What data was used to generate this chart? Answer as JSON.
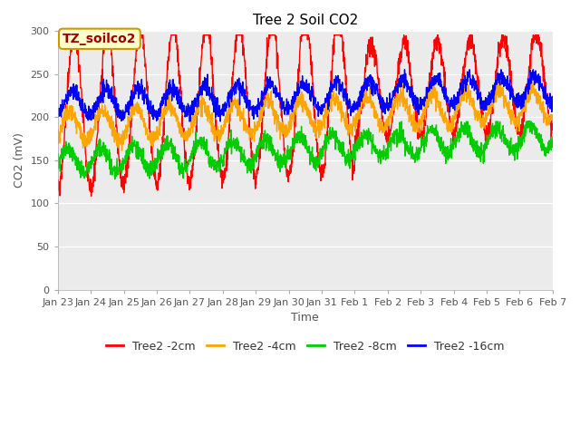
{
  "title": "Tree 2 Soil CO2",
  "xlabel": "Time",
  "ylabel": "CO2 (mV)",
  "ylim": [
    0,
    300
  ],
  "series_labels": [
    "Tree2 -2cm",
    "Tree2 -4cm",
    "Tree2 -8cm",
    "Tree2 -16cm"
  ],
  "series_colors": [
    "#ff0000",
    "#ffa500",
    "#00cc00",
    "#0000ff"
  ],
  "xtick_labels": [
    "Jan 23",
    "Jan 24",
    "Jan 25",
    "Jan 26",
    "Jan 27",
    "Jan 28",
    "Jan 29",
    "Jan 30",
    "Jan 31",
    "Feb 1",
    "Feb 2",
    "Feb 3",
    "Feb 4",
    "Feb 5",
    "Feb 6",
    "Feb 7"
  ],
  "figure_bg": "#ffffff",
  "plot_bg_color": "#ebebeb",
  "title_fontsize": 11,
  "axis_label_fontsize": 9,
  "tick_fontsize": 8,
  "legend_fontsize": 9,
  "linewidth": 1.0,
  "annotation_text": "TZ_soilco2",
  "annotation_bg": "#ffffcc",
  "annotation_edge": "#cc9900",
  "annotation_color": "#990000"
}
